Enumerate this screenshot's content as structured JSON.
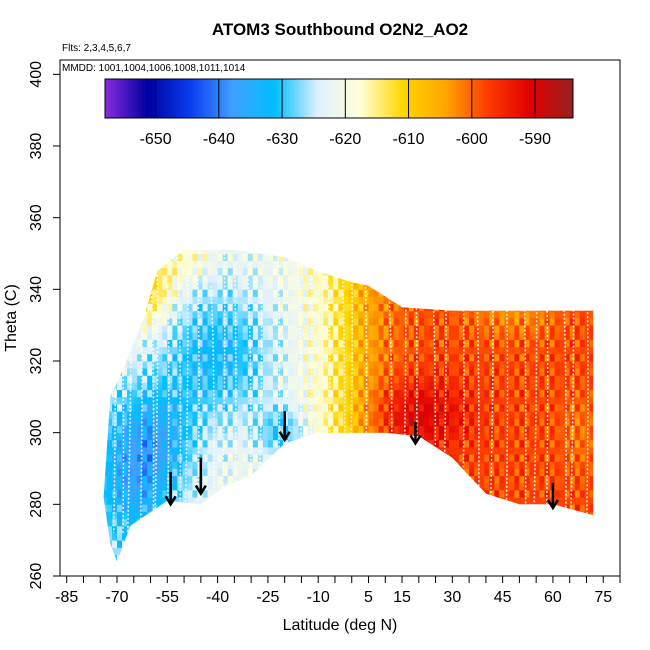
{
  "chart_data": {
    "type": "heatmap",
    "title": "ATOM3 Southbound O2N2_AO2",
    "flights_note": "Flts: 2,3,4,5,6,7",
    "dates_note": "MMDD: 1001,1004,1006,1008,1011,1014",
    "xlabel": "Latitude (deg N)",
    "ylabel": "Theta (C)",
    "xlim": [
      -87,
      80
    ],
    "ylim": [
      260,
      404
    ],
    "x_ticks": [
      -85,
      -70,
      -55,
      -40,
      -25,
      -10,
      5,
      15,
      30,
      45,
      60,
      75
    ],
    "y_ticks": [
      260,
      280,
      300,
      320,
      340,
      360,
      380,
      400
    ],
    "colorbar": {
      "range": [
        -658,
        -584
      ],
      "ticks": [
        -650,
        -640,
        -630,
        -620,
        -610,
        -600,
        -590
      ],
      "colors": [
        "#8a2be2",
        "#0000a0",
        "#0a3cf0",
        "#3fa0ff",
        "#00bfff",
        "#dff0ff",
        "#ffffd8",
        "#ffd700",
        "#ffa500",
        "#ff3a00",
        "#e00000",
        "#962020"
      ]
    },
    "field_notes": "Value of O2N2_AO2 on a latitude-theta grid: about -640 to -630 over the southern high latitudes and mid-troposphere near -30 to -40 deg N, about -620 near the equator, and -605 to -595 in the northern subtropics, with a maximum of about -595 near 15-25 deg N, theta 300-310.",
    "region_outline": {
      "upper_boundary": [
        [
          -72,
          310
        ],
        [
          -68,
          318
        ],
        [
          -62,
          332
        ],
        [
          -58,
          345
        ],
        [
          -50,
          351
        ],
        [
          -35,
          351
        ],
        [
          -20,
          349
        ],
        [
          -10,
          345
        ],
        [
          0,
          342
        ],
        [
          5,
          341
        ],
        [
          15,
          335
        ],
        [
          30,
          334
        ],
        [
          45,
          334
        ],
        [
          60,
          334
        ],
        [
          72,
          334
        ]
      ],
      "lower_boundary": [
        [
          -74,
          282
        ],
        [
          -72,
          269
        ],
        [
          -70,
          264
        ],
        [
          -66,
          274
        ],
        [
          -55,
          281
        ],
        [
          -45,
          280
        ],
        [
          -38,
          285
        ],
        [
          -30,
          288
        ],
        [
          -20,
          297
        ],
        [
          -10,
          300
        ],
        [
          0,
          300
        ],
        [
          10,
          300
        ],
        [
          20,
          299
        ],
        [
          30,
          293
        ],
        [
          40,
          283
        ],
        [
          50,
          280
        ],
        [
          60,
          280
        ],
        [
          72,
          277
        ]
      ]
    },
    "arrows": [
      {
        "lat": -54,
        "theta_top": 289,
        "theta_tip": 280
      },
      {
        "lat": -45,
        "theta_top": 293,
        "theta_tip": 283
      },
      {
        "lat": -20,
        "theta_top": 306,
        "theta_tip": 298
      },
      {
        "lat": 19,
        "theta_top": 303,
        "theta_tip": 297
      },
      {
        "lat": 60,
        "theta_top": 286,
        "theta_tip": 279
      }
    ]
  }
}
